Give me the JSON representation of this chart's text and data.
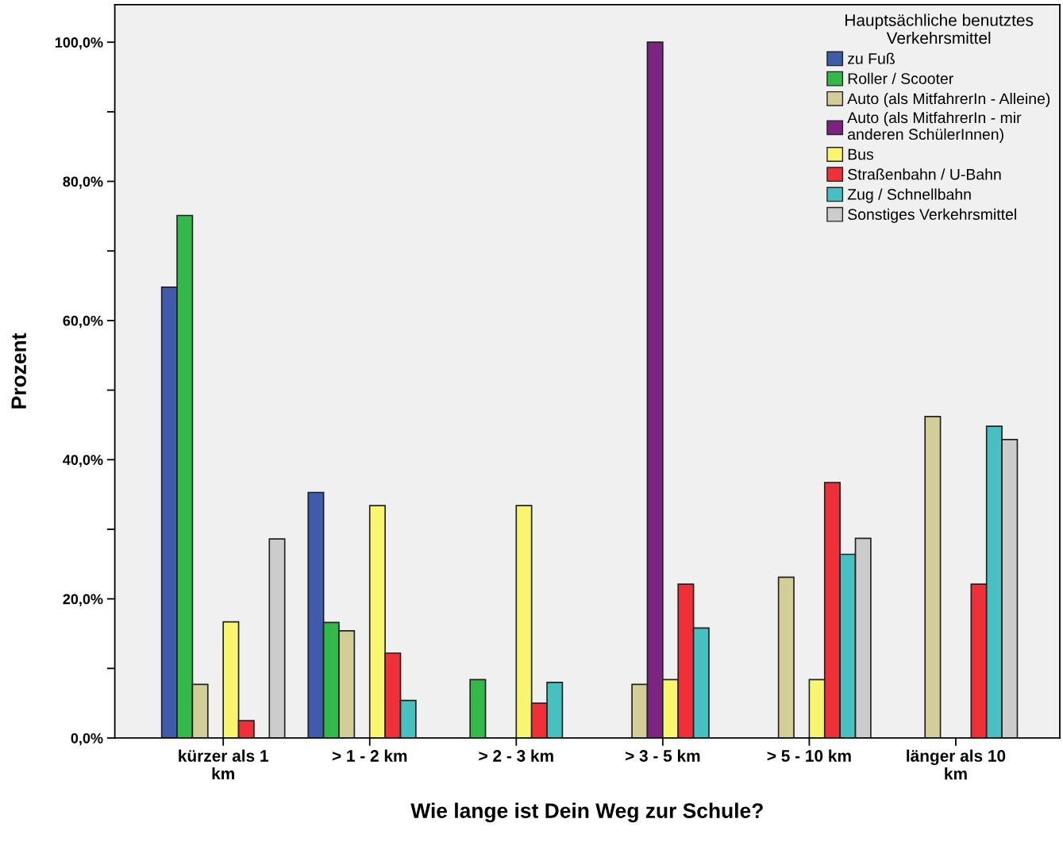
{
  "chart_data": {
    "type": "bar",
    "xlabel": "Wie lange ist Dein Weg zur Schule?",
    "ylabel": "Prozent",
    "legend_title": "Hauptsächliche benutztes\nVerkehrsmittel",
    "categories": [
      "kürzer als 1\nkm",
      "> 1 - 2 km",
      "> 2 - 3 km",
      "> 3 - 5 km",
      "> 5 - 10 km",
      "länger als 10\nkm"
    ],
    "series": [
      {
        "name": "zu Fuß",
        "color": "#3f5ba9",
        "values": [
          64.8,
          35.3,
          0,
          0,
          0,
          0
        ]
      },
      {
        "name": "Roller / Scooter",
        "color": "#33b84a",
        "values": [
          75.1,
          16.6,
          8.4,
          0,
          0,
          0
        ]
      },
      {
        "name": "Auto (als MitfahrerIn - Alleine)",
        "color": "#d3ce97",
        "values": [
          7.7,
          15.4,
          0,
          7.7,
          23.1,
          46.2
        ]
      },
      {
        "name": "Auto (als MitfahrerIn - mir\nanderen SchülerInnen)",
        "color": "#7b2481",
        "values": [
          0,
          0,
          0,
          100,
          0,
          0
        ]
      },
      {
        "name": "Bus",
        "color": "#f8f66e",
        "values": [
          16.7,
          33.4,
          33.4,
          8.4,
          8.4,
          0
        ]
      },
      {
        "name": "Straßenbahn / U-Bahn",
        "color": "#ef3038",
        "values": [
          2.5,
          12.2,
          5.0,
          22.1,
          36.7,
          22.1
        ]
      },
      {
        "name": "Zug / Schnellbahn",
        "color": "#48c0c2",
        "values": [
          0,
          5.4,
          8.0,
          15.8,
          26.4,
          44.8
        ]
      },
      {
        "name": "Sonstiges Verkehrsmittel",
        "color": "#cccccc",
        "values": [
          28.6,
          0,
          0,
          0,
          28.7,
          42.9
        ]
      }
    ],
    "ylim": [
      0,
      105.4
    ],
    "yticks": [
      {
        "value": 0,
        "label": "0,0%"
      },
      {
        "value": 10,
        "label": null
      },
      {
        "value": 20,
        "label": "20,0%"
      },
      {
        "value": 30,
        "label": null
      },
      {
        "value": 40,
        "label": "40,0%"
      },
      {
        "value": 50,
        "label": null
      },
      {
        "value": 60,
        "label": "60,0%"
      },
      {
        "value": 70,
        "label": null
      },
      {
        "value": 80,
        "label": "80,0%"
      },
      {
        "value": 90,
        "label": null
      },
      {
        "value": 100,
        "label": "100,0%"
      }
    ],
    "grid": false,
    "legend": "top right"
  }
}
